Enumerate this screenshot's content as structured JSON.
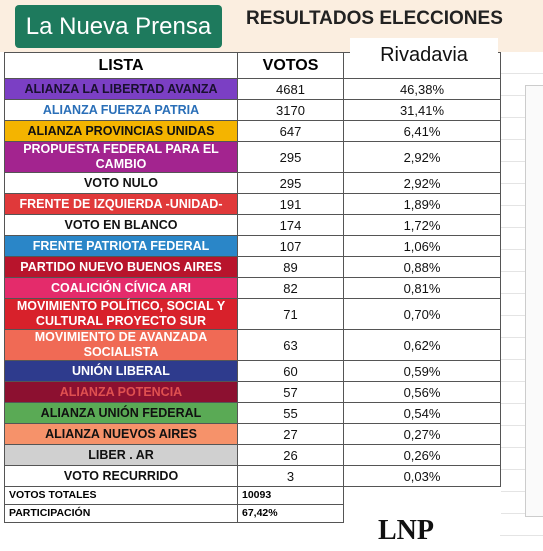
{
  "header": {
    "brand": "La Nueva Prensa",
    "title": "RESULTADOS ELECCIONES",
    "subtitle": "Rivadavia"
  },
  "table": {
    "columns": [
      "LISTA",
      "VOTOS"
    ],
    "rows": [
      {
        "name": "ALIANZA LA LIBERTAD AVANZA",
        "votes": "4681",
        "percent": "46,38%",
        "color": "#7b3fc4",
        "text_color": "#1a1030"
      },
      {
        "name": "ALIANZA FUERZA PATRIA",
        "votes": "3170",
        "percent": "31,41%",
        "color": "#ffffff",
        "text_color": "#2a6fb8"
      },
      {
        "name": "ALIANZA PROVINCIAS UNIDAS",
        "votes": "647",
        "percent": "6,41%",
        "color": "#f4b400",
        "text_color": "#111111"
      },
      {
        "name": "PROPUESTA FEDERAL PARA EL CAMBIO",
        "votes": "295",
        "percent": "2,92%",
        "color": "#a3248f",
        "text_color": "#ffffff"
      },
      {
        "name": "VOTO NULO",
        "votes": "295",
        "percent": "2,92%",
        "color": "#ffffff",
        "text_color": "#111111"
      },
      {
        "name": "FRENTE DE IZQUIERDA -UNIDAD-",
        "votes": "191",
        "percent": "1,89%",
        "color": "#e0393a",
        "text_color": "#ffffff"
      },
      {
        "name": "VOTO EN BLANCO",
        "votes": "174",
        "percent": "1,72%",
        "color": "#ffffff",
        "text_color": "#111111"
      },
      {
        "name": "FRENTE PATRIOTA FEDERAL",
        "votes": "107",
        "percent": "1,06%",
        "color": "#2a86c8",
        "text_color": "#ffffff"
      },
      {
        "name": "PARTIDO NUEVO BUENOS AIRES",
        "votes": "89",
        "percent": "0,88%",
        "color": "#b8142c",
        "text_color": "#ffffff"
      },
      {
        "name": "COALICIÓN CÍVICA ARI",
        "votes": "82",
        "percent": "0,81%",
        "color": "#e42b6b",
        "text_color": "#ffffff"
      },
      {
        "name": "MOVIMIENTO POLÍTICO, SOCIAL Y CULTURAL PROYECTO SUR",
        "votes": "71",
        "percent": "0,70%",
        "color": "#d8212b",
        "text_color": "#ffffff"
      },
      {
        "name": "MOVIMIENTO DE AVANZADA SOCIALISTA",
        "votes": "63",
        "percent": "0,62%",
        "color": "#f06a55",
        "text_color": "#ffffff"
      },
      {
        "name": "UNIÓN LIBERAL",
        "votes": "60",
        "percent": "0,59%",
        "color": "#2e3b8d",
        "text_color": "#ffffff"
      },
      {
        "name": "ALIANZA POTENCIA",
        "votes": "57",
        "percent": "0,56%",
        "color": "#8c1030",
        "text_color": "#e05050"
      },
      {
        "name": "ALIANZA UNIÓN FEDERAL",
        "votes": "55",
        "percent": "0,54%",
        "color": "#5aaa55",
        "text_color": "#111111"
      },
      {
        "name": "ALIANZA NUEVOS AIRES",
        "votes": "27",
        "percent": "0,27%",
        "color": "#f6926a",
        "text_color": "#111111"
      },
      {
        "name": "LIBER . AR",
        "votes": "26",
        "percent": "0,26%",
        "color": "#d0d0d0",
        "text_color": "#111111"
      },
      {
        "name": "VOTO RECURRIDO",
        "votes": "3",
        "percent": "0,03%",
        "color": "#ffffff",
        "text_color": "#111111"
      }
    ],
    "totals": [
      {
        "label": "VOTOS TOTALES",
        "value": "10093"
      },
      {
        "label": "PARTICIPACIÓN",
        "value": "67,42%"
      }
    ]
  },
  "logo": "LNP"
}
